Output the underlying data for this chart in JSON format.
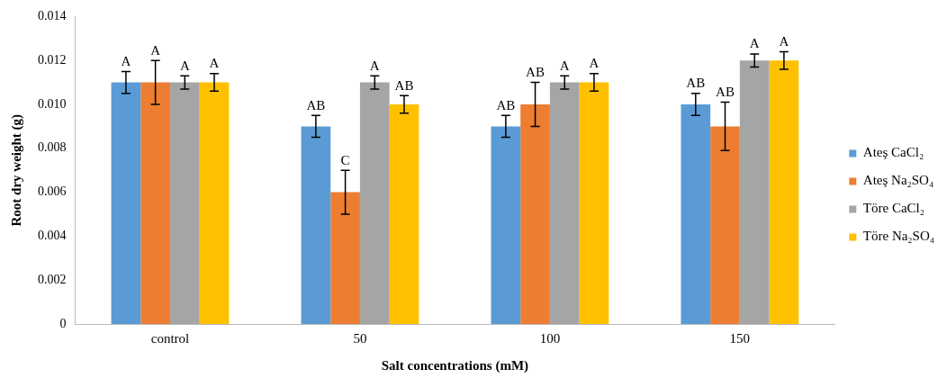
{
  "chart_data": {
    "type": "bar",
    "xlabel": "Salt concentrations (mM)",
    "ylabel": "Root dry weight (g)",
    "categories": [
      "control",
      "50",
      "100",
      "150"
    ],
    "series": [
      {
        "name": "Ateş CaCl₂",
        "color": "#5b9bd5",
        "values": [
          0.011,
          0.009,
          0.009,
          0.01
        ],
        "errors": [
          0.0005,
          0.0005,
          0.0005,
          0.0005
        ],
        "value_labels": [
          "A",
          "AB",
          "AB",
          "AB"
        ]
      },
      {
        "name": "Ateş Na₂SO₄",
        "color": "#ed7d31",
        "values": [
          0.011,
          0.006,
          0.01,
          0.009
        ],
        "errors": [
          0.001,
          0.001,
          0.001,
          0.0011
        ],
        "value_labels": [
          "A",
          "C",
          "AB",
          "AB"
        ]
      },
      {
        "name": "Töre CaCl₂",
        "color": "#a5a5a5",
        "values": [
          0.011,
          0.011,
          0.011,
          0.012
        ],
        "errors": [
          0.0003,
          0.0003,
          0.0003,
          0.0003
        ],
        "value_labels": [
          "A",
          "A",
          "A",
          "A"
        ]
      },
      {
        "name": "Töre Na₂SO₄",
        "color": "#ffc000",
        "values": [
          0.011,
          0.01,
          0.011,
          0.012
        ],
        "errors": [
          0.0004,
          0.0004,
          0.0004,
          0.0004
        ],
        "value_labels": [
          "A",
          "AB",
          "A",
          "A"
        ]
      }
    ],
    "ylim": [
      0,
      0.014
    ],
    "yticks": [
      0,
      0.002,
      0.004,
      0.006,
      0.008,
      {
        "value": 0.01,
        "label": "0.010"
      },
      0.012,
      0.014
    ],
    "grid": false,
    "legend": "right"
  }
}
